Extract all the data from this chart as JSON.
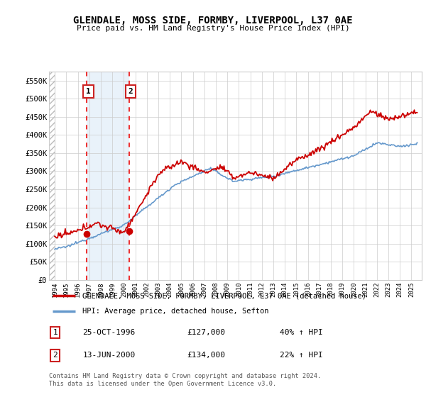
{
  "title": "GLENDALE, MOSS SIDE, FORMBY, LIVERPOOL, L37 0AE",
  "subtitle": "Price paid vs. HM Land Registry's House Price Index (HPI)",
  "ylim": [
    0,
    575000
  ],
  "yticks": [
    0,
    50000,
    100000,
    150000,
    200000,
    250000,
    300000,
    350000,
    400000,
    450000,
    500000,
    550000
  ],
  "ytick_labels": [
    "£0",
    "£50K",
    "£100K",
    "£150K",
    "£200K",
    "£250K",
    "£300K",
    "£350K",
    "£400K",
    "£450K",
    "£500K",
    "£550K"
  ],
  "legend_line1": "GLENDALE, MOSS SIDE, FORMBY, LIVERPOOL, L37 0AE (detached house)",
  "legend_line2": "HPI: Average price, detached house, Sefton",
  "line1_color": "#cc0000",
  "line2_color": "#6699cc",
  "sale1_x": 1996.79,
  "sale1_y": 127000,
  "sale2_x": 2000.45,
  "sale2_y": 134000,
  "annotation1_label": "1",
  "annotation1_date": "25-OCT-1996",
  "annotation1_price": "£127,000",
  "annotation1_hpi": "40% ↑ HPI",
  "annotation2_label": "2",
  "annotation2_date": "13-JUN-2000",
  "annotation2_price": "£134,000",
  "annotation2_hpi": "22% ↑ HPI",
  "footnote": "Contains HM Land Registry data © Crown copyright and database right 2024.\nThis data is licensed under the Open Government Licence v3.0.",
  "grid_color": "#cccccc",
  "shade_between_color": "#ddeeff",
  "hatch_color": "#bbbbbb",
  "xlim_left": 1993.5,
  "xlim_right": 2025.9
}
